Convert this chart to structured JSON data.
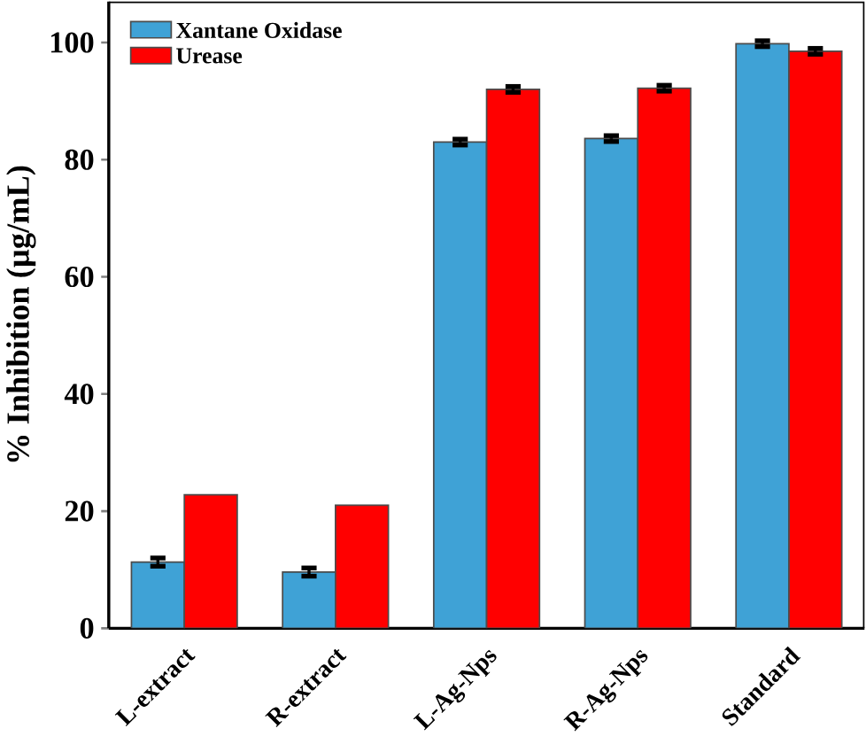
{
  "chart_data": {
    "type": "bar",
    "ylabel": "% Inhibition (µg/mL)",
    "categories": [
      "L-extract",
      "R-extract",
      "L-Ag-Nps",
      "R-Ag-Nps",
      "Standard"
    ],
    "series": [
      {
        "name": "Xantane Oxidase",
        "color": "#3fa2d6",
        "values": [
          11.3,
          9.6,
          83.0,
          83.6,
          99.8
        ],
        "errors": [
          0.7,
          0.7,
          0.5,
          0.5,
          0.5
        ]
      },
      {
        "name": "Urease",
        "color": "#ff0000",
        "values": [
          22.8,
          21.0,
          92.0,
          92.2,
          98.5
        ],
        "errors": [
          null,
          null,
          0.5,
          0.5,
          0.5
        ]
      }
    ],
    "ylim": [
      0,
      107
    ],
    "yticks": [
      0,
      20,
      40,
      60,
      80,
      100
    ],
    "legend": "top left",
    "grid": false
  }
}
